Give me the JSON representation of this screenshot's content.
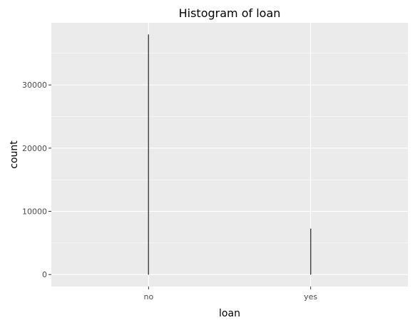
{
  "chart_data": {
    "type": "bar",
    "title": "Histogram of loan",
    "xlabel": "loan",
    "ylabel": "count",
    "categories": [
      "no",
      "yes"
    ],
    "values": [
      37967,
      7244
    ],
    "ylim": [
      -1895,
      39830
    ],
    "yticks": [
      0,
      10000,
      20000,
      30000
    ],
    "ytick_labels": [
      "0",
      "10000",
      "20000",
      "30000"
    ],
    "grid": true,
    "legend": "none",
    "colors": {
      "panel_background": "#ebebeb",
      "grid_major": "#ffffff",
      "bar_fill": "#595959",
      "bar_stroke": "#000000"
    }
  }
}
